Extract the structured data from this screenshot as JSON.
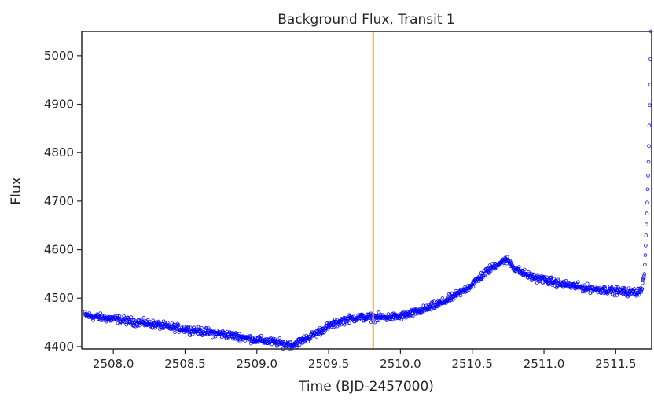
{
  "chart_data": {
    "type": "scatter",
    "title": "Background Flux, Transit 1",
    "xlabel": "Time (BJD-2457000)",
    "ylabel": "Flux",
    "xlim": [
      2507.78,
      2511.75
    ],
    "ylim": [
      4395,
      5050
    ],
    "x_ticks": [
      "2508.0",
      "2508.5",
      "2509.0",
      "2509.5",
      "2510.0",
      "2510.5",
      "2511.0",
      "2511.5"
    ],
    "y_ticks": [
      "4400",
      "4500",
      "4600",
      "4700",
      "4800",
      "4900",
      "5000"
    ],
    "grid": false,
    "legend": "none",
    "marker": "open-circle",
    "series": [
      {
        "color": "#0000ff",
        "x": [
          2507.8,
          2507.9,
          2508.0,
          2508.1,
          2508.2,
          2508.3,
          2508.4,
          2508.5,
          2508.6,
          2508.7,
          2508.8,
          2508.9,
          2509.0,
          2509.1,
          2509.2,
          2509.25,
          2509.3,
          2509.4,
          2509.5,
          2509.6,
          2509.7,
          2509.8,
          2509.9,
          2510.0,
          2510.1,
          2510.2,
          2510.3,
          2510.4,
          2510.5,
          2510.6,
          2510.7,
          2510.75,
          2510.8,
          2510.9,
          2511.0,
          2511.1,
          2511.2,
          2511.3,
          2511.4,
          2511.5,
          2511.6,
          2511.65,
          2511.68,
          2511.7,
          2511.71,
          2511.72,
          2511.73,
          2511.74,
          2511.745
        ],
        "y": [
          4465,
          4460,
          4457,
          4453,
          4449,
          4445,
          4440,
          4436,
          4432,
          4428,
          4424,
          4419,
          4414,
          4410,
          4405,
          4404,
          4410,
          4425,
          4442,
          4454,
          4460,
          4460,
          4460,
          4462,
          4470,
          4480,
          4492,
          4508,
          4528,
          4555,
          4575,
          4578,
          4560,
          4545,
          4538,
          4530,
          4525,
          4520,
          4518,
          4515,
          4512,
          4512,
          4520,
          4550,
          4620,
          4700,
          4800,
          4950,
          5050
        ]
      }
    ],
    "annotations": [
      {
        "type": "vertical-line",
        "x": 2509.81,
        "color": "#ffa500"
      }
    ]
  }
}
